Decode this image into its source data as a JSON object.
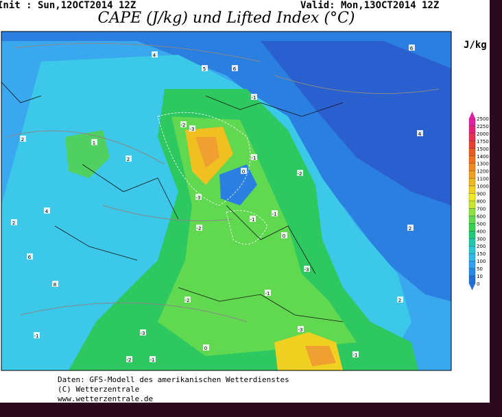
{
  "header": {
    "init": "Init : Sun,12OCT2014 12Z",
    "valid": "Valid: Mon,13OCT2014 12Z",
    "title": "CAPE (J/kg) und Lifted Index (°C)"
  },
  "legend": {
    "unit": "J/kg",
    "levels": [
      2500,
      2250,
      2000,
      1750,
      1500,
      1400,
      1300,
      1200,
      1100,
      1000,
      900,
      800,
      700,
      600,
      500,
      400,
      300,
      200,
      150,
      100,
      50,
      10,
      0
    ],
    "colors": [
      "#e020a0",
      "#e8207a",
      "#e83050",
      "#e84030",
      "#e85a20",
      "#f07020",
      "#f08820",
      "#f0a020",
      "#f0b820",
      "#f0d020",
      "#f0e820",
      "#c8e830",
      "#90e040",
      "#60d850",
      "#38d050",
      "#20c878",
      "#20c8a8",
      "#28c8d0",
      "#30b8e8",
      "#30a0f0",
      "#2888e8",
      "#2070d8"
    ]
  },
  "map": {
    "labels": [
      "4",
      "5",
      "6",
      "6",
      "2",
      "1",
      "-3",
      "-2",
      "-1",
      "0",
      "-1",
      "-2",
      "2",
      "4",
      "2",
      "-3",
      "-2",
      "-1",
      "0",
      "-1",
      "-3",
      "-2",
      "-1",
      "-3",
      "6",
      "8",
      "4",
      "2",
      "-1",
      "0",
      "2",
      "-2",
      "-1",
      "-3",
      "-1"
    ]
  },
  "footer": [
    "Daten: GFS-Modell des amerikanischen Wetterdienstes",
    "(C) Wetterzentrale",
    "www.wetterzentrale.de"
  ]
}
